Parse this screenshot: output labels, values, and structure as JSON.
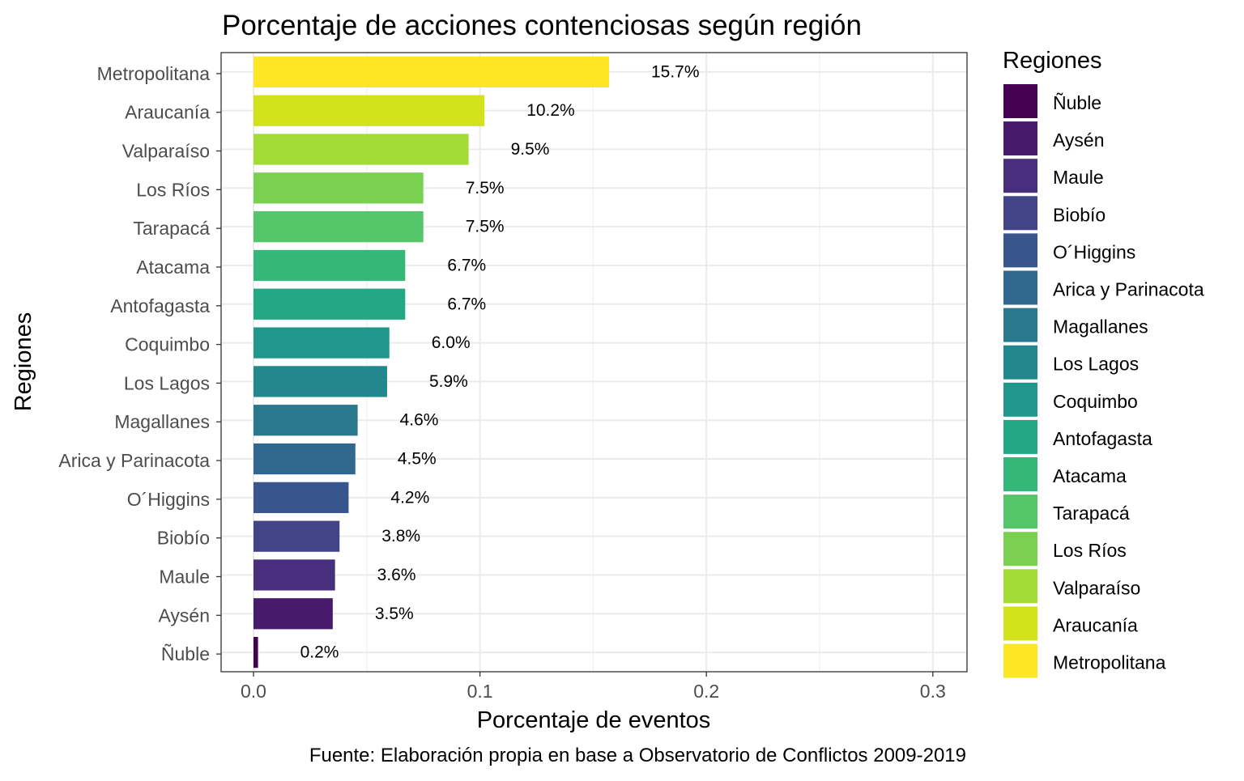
{
  "chart_data": {
    "type": "bar",
    "orientation": "horizontal",
    "title": "Porcentaje de acciones contenciosas según región",
    "xlabel": "Porcentaje de eventos",
    "ylabel": "Regiones",
    "caption": "Fuente: Elaboración propia en base a Observatorio de Conflictos 2009-2019",
    "xlim": [
      0,
      0.3
    ],
    "x_ticks": [
      "0.0",
      "0.1",
      "0.2",
      "0.3"
    ],
    "grid": true,
    "legend": {
      "title": "Regiones",
      "placement": "right",
      "entries": [
        "Ñuble",
        "Aysén",
        "Maule",
        "Biobío",
        "O´Higgins",
        "Arica y Parinacota",
        "Magallanes",
        "Los Lagos",
        "Coquimbo",
        "Antofagasta",
        "Atacama",
        "Tarapacá",
        "Los Ríos",
        "Valparaíso",
        "Araucanía",
        "Metropolitana"
      ]
    },
    "bars": [
      {
        "category": "Metropolitana",
        "value": 0.157,
        "label": "15.7%",
        "color": "#FDE725"
      },
      {
        "category": "Araucanía",
        "value": 0.102,
        "label": "10.2%",
        "color": "#D2E21B"
      },
      {
        "category": "Valparaíso",
        "value": 0.095,
        "label": "9.5%",
        "color": "#A5DB36"
      },
      {
        "category": "Los Ríos",
        "value": 0.075,
        "label": "7.5%",
        "color": "#7AD151"
      },
      {
        "category": "Tarapacá",
        "value": 0.075,
        "label": "7.5%",
        "color": "#54C568"
      },
      {
        "category": "Atacama",
        "value": 0.067,
        "label": "6.7%",
        "color": "#35B779"
      },
      {
        "category": "Antofagasta",
        "value": 0.067,
        "label": "6.7%",
        "color": "#22A884"
      },
      {
        "category": "Coquimbo",
        "value": 0.06,
        "label": "6.0%",
        "color": "#1F988B"
      },
      {
        "category": "Los Lagos",
        "value": 0.059,
        "label": "5.9%",
        "color": "#23888E"
      },
      {
        "category": "Magallanes",
        "value": 0.046,
        "label": "4.6%",
        "color": "#2A788E"
      },
      {
        "category": "Arica y Parinacota",
        "value": 0.045,
        "label": "4.5%",
        "color": "#31688E"
      },
      {
        "category": "O´Higgins",
        "value": 0.042,
        "label": "4.2%",
        "color": "#39568C"
      },
      {
        "category": "Biobío",
        "value": 0.038,
        "label": "3.8%",
        "color": "#414487"
      },
      {
        "category": "Maule",
        "value": 0.036,
        "label": "3.6%",
        "color": "#472F7D"
      },
      {
        "category": "Aysén",
        "value": 0.035,
        "label": "3.5%",
        "color": "#481A6C"
      },
      {
        "category": "Ñuble",
        "value": 0.002,
        "label": "0.2%",
        "color": "#440154"
      }
    ]
  }
}
